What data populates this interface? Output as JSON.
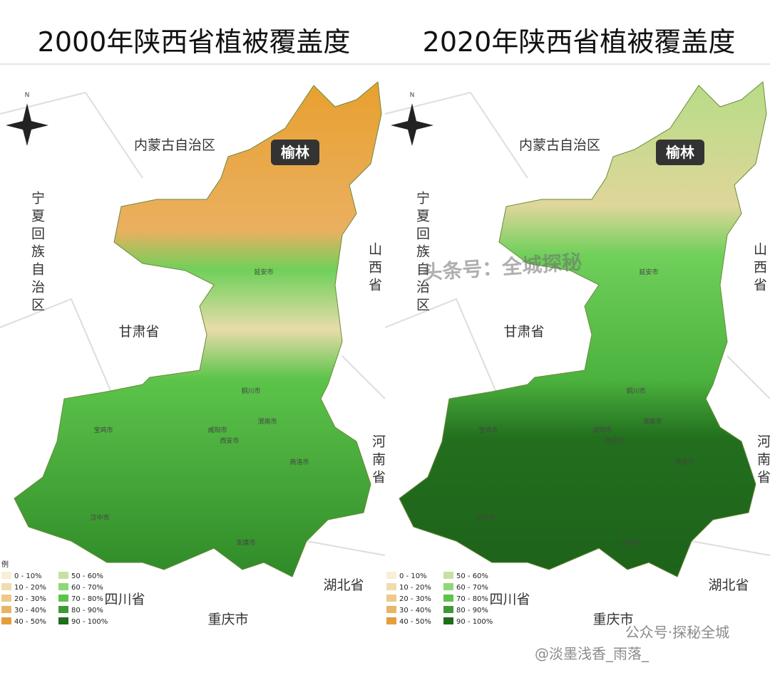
{
  "panels": [
    {
      "title": "2000年陕西省植被覆盖度",
      "north": "N",
      "regions": [
        "内蒙古自治区",
        "宁夏回族自治区",
        "甘肃省",
        "山西省",
        "河南省",
        "湖北省",
        "四川省",
        "重庆市"
      ],
      "highlight": "榆林",
      "cities": [
        "延安市",
        "铜川市",
        "宝鸡市",
        "咸阳市",
        "西安市",
        "渭南市",
        "商洛市",
        "汉中市",
        "安康市"
      ],
      "legend_title": "例",
      "legend": [
        {
          "label": "0 - 10%",
          "color": "#f8efd6"
        },
        {
          "label": "10 - 20%",
          "color": "#f1dcae"
        },
        {
          "label": "20 - 30%",
          "color": "#edc98a"
        },
        {
          "label": "30 - 40%",
          "color": "#e8b565"
        },
        {
          "label": "40 - 50%",
          "color": "#e39f3c"
        },
        {
          "label": "50 - 60%",
          "color": "#c9e0a2"
        },
        {
          "label": "60 - 70%",
          "color": "#8fd878"
        },
        {
          "label": "70 - 80%",
          "color": "#5cc44a"
        },
        {
          "label": "80 - 90%",
          "color": "#3c9c32"
        },
        {
          "label": "90 - 100%",
          "color": "#1f6e1c"
        }
      ]
    },
    {
      "title": "2020年陕西省植被覆盖度",
      "north": "N",
      "regions": [
        "内蒙古自治区",
        "宁夏回族自治区",
        "甘肃省",
        "山西省",
        "河南省",
        "湖北省",
        "四川省",
        "重庆市"
      ],
      "highlight": "榆林",
      "cities": [
        "延安市",
        "铜川市",
        "宝鸡市",
        "咸阳市",
        "西安市",
        "渭南市",
        "商洛市",
        "汉中市",
        "安康市"
      ],
      "legend": [
        {
          "label": "0 - 10%",
          "color": "#f8efd6"
        },
        {
          "label": "10 - 20%",
          "color": "#f1dcae"
        },
        {
          "label": "20 - 30%",
          "color": "#edc98a"
        },
        {
          "label": "30 - 40%",
          "color": "#e8b565"
        },
        {
          "label": "40 - 50%",
          "color": "#e39f3c"
        },
        {
          "label": "50 - 60%",
          "color": "#c9e0a2"
        },
        {
          "label": "60 - 70%",
          "color": "#8fd878"
        },
        {
          "label": "70 - 80%",
          "color": "#5cc44a"
        },
        {
          "label": "80 - 90%",
          "color": "#3c9c32"
        },
        {
          "label": "90 - 100%",
          "color": "#1f6e1c"
        }
      ]
    }
  ],
  "watermarks": [
    "头条号：全城探秘",
    "公众号·探秘全城",
    "@淡墨浅香_雨落_"
  ]
}
